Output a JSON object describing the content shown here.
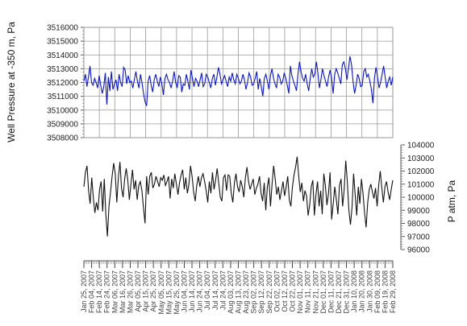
{
  "chart_data": [
    {
      "type": "line",
      "ylabel": "Well Pressure at -350 m, Pa",
      "ylim": [
        3508000,
        3516000
      ],
      "yticks": [
        "3508000",
        "3509000",
        "3510000",
        "3511000",
        "3512000",
        "3513000",
        "3514000",
        "3515000",
        "3516000"
      ],
      "x_range": [
        "2007-01-25",
        "2008-02-29"
      ],
      "grid": true,
      "colors": {
        "series": "#0a14d8"
      },
      "series": [
        {
          "values": [
            3512100,
            3512600,
            3511700,
            3512400,
            3513200,
            3512000,
            3511800,
            3512300,
            3512000,
            3511600,
            3512500,
            3511800,
            3511200,
            3511700,
            3512700,
            3510400,
            3512400,
            3511400,
            3512800,
            3511500,
            3511900,
            3512200,
            3511400,
            3512600,
            3512000,
            3511700,
            3513100,
            3512900,
            3511900,
            3512500,
            3512000,
            3512100,
            3511600,
            3512200,
            3512800,
            3512100,
            3511600,
            3512600,
            3512000,
            3511200,
            3510600,
            3510300,
            3512100,
            3512500,
            3511800,
            3511300,
            3512200,
            3512600,
            3512100,
            3511700,
            3512400,
            3511900,
            3511100,
            3512300,
            3512600,
            3512200,
            3512000,
            3511600,
            3512100,
            3512800,
            3512000,
            3511600,
            3512500,
            3512400,
            3511300,
            3511900,
            3511800,
            3512600,
            3512100,
            3511500,
            3512900,
            3512300,
            3511700,
            3512300,
            3512100,
            3511700,
            3512200,
            3512700,
            3511700,
            3511900,
            3512600,
            3512400,
            3512000,
            3511600,
            3512300,
            3512600,
            3511800,
            3512400,
            3513100,
            3512600,
            3511900,
            3512200,
            3512500,
            3512100,
            3511700,
            3512400,
            3512100,
            3512700,
            3512200,
            3511900,
            3512600,
            3512300,
            3511900,
            3512100,
            3512600,
            3512200,
            3511500,
            3512000,
            3512700,
            3512400,
            3511800,
            3511900,
            3512300,
            3512800,
            3511500,
            3512300,
            3511700,
            3511000,
            3512300,
            3512600,
            3512100,
            3511500,
            3512500,
            3513000,
            3512300,
            3511900,
            3511600,
            3512600,
            3512400,
            3511900,
            3512100,
            3512700,
            3512300,
            3511800,
            3511200,
            3513200,
            3512500,
            3512100,
            3511800,
            3511400,
            3512600,
            3513500,
            3512800,
            3512300,
            3512100,
            3512600,
            3511900,
            3511400,
            3512300,
            3513000,
            3512400,
            3512600,
            3513500,
            3512700,
            3511600,
            3512200,
            3513000,
            3512500,
            3512100,
            3511700,
            3512400,
            3512900,
            3512300,
            3511200,
            3512600,
            3513000,
            3512700,
            3512300,
            3511900,
            3513300,
            3513500,
            3513000,
            3512200,
            3513000,
            3513900,
            3513300,
            3512100,
            3511200,
            3511800,
            3512600,
            3512300,
            3511700,
            3511800,
            3512800,
            3513000,
            3512400,
            3512600,
            3512100,
            3511500,
            3510500,
            3512300,
            3513100,
            3512400,
            3511600,
            3512000,
            3512600,
            3513200,
            3512400,
            3511600,
            3512100,
            3512400,
            3511800,
            3512400
          ]
        }
      ]
    },
    {
      "type": "line",
      "ylabel": "P atm, Pa",
      "ylim": [
        96000,
        104000
      ],
      "yticks": [
        "96000",
        "97000",
        "98000",
        "99000",
        "100000",
        "101000",
        "102000",
        "103000",
        "104000"
      ],
      "x_range": [
        "2007-01-25",
        "2008-02-29"
      ],
      "grid": false,
      "colors": {
        "series": "#111111"
      },
      "series": [
        {
          "values": [
            100800,
            101900,
            102400,
            100500,
            99500,
            101500,
            100000,
            98800,
            99600,
            99000,
            100600,
            101200,
            98900,
            101400,
            98700,
            97000,
            99300,
            100400,
            101600,
            102600,
            101800,
            99600,
            101500,
            102700,
            100700,
            100000,
            101400,
            102200,
            101300,
            99800,
            101000,
            102100,
            100600,
            101300,
            99800,
            100900,
            101200,
            100500,
            99200,
            98000,
            101600,
            100200,
            101600,
            101900,
            100700,
            101000,
            101600,
            101200,
            100800,
            101500,
            101300,
            101700,
            100900,
            101200,
            101600,
            99900,
            101400,
            100700,
            101800,
            101000,
            100200,
            101100,
            101700,
            102100,
            100600,
            101500,
            100300,
            101000,
            102400,
            101600,
            100400,
            99700,
            100900,
            101600,
            100800,
            101500,
            101800,
            101200,
            100500,
            99600,
            101200,
            100300,
            101900,
            100600,
            101300,
            102200,
            101100,
            100000,
            99700,
            101500,
            101700,
            100500,
            101700,
            101600,
            100300,
            99600,
            101100,
            101800,
            100800,
            100400,
            101300,
            100800,
            100000,
            101500,
            102300,
            101200,
            100600,
            101000,
            101400,
            100200,
            100700,
            101000,
            101600,
            100300,
            99700,
            101100,
            99000,
            100800,
            101500,
            99300,
            101000,
            102400,
            101400,
            100200,
            100800,
            99800,
            100500,
            101200,
            100100,
            100800,
            101600,
            99800,
            99300,
            100800,
            101700,
            102300,
            103100,
            101600,
            100400,
            101100,
            99700,
            100500,
            100100,
            98600,
            99400,
            100800,
            101300,
            98600,
            100200,
            101200,
            99300,
            100500,
            98700,
            101800,
            100900,
            99400,
            100300,
            101900,
            98300,
            99500,
            100800,
            99800,
            98700,
            100900,
            101400,
            99300,
            100600,
            102800,
            101200,
            99000,
            97900,
            99200,
            101800,
            100200,
            98600,
            100800,
            99500,
            101400,
            100300,
            98800,
            97700,
            99600,
            100600,
            101000,
            100400,
            99900,
            100700,
            99300,
            100900,
            102000,
            100700,
            99600,
            100800,
            101200,
            100400,
            99800,
            100600,
            101300
          ]
        }
      ]
    }
  ],
  "x_tick_labels": [
    "Jan 25, 2007",
    "Feb 04, 2007",
    "Feb 14, 2007",
    "Feb 24, 2007",
    "Mar 06, 2007",
    "Mar 16, 2007",
    "Mar 26, 2007",
    "Apr 05, 2007",
    "Apr 15, 2007",
    "Apr 25, 2007",
    "May 05, 2007",
    "May 15, 2007",
    "May 25, 2007",
    "Jun 04, 2007",
    "Jun 14, 2007",
    "Jun 24, 2007",
    "Jul 04, 2007",
    "Jul 14, 2007",
    "Jul 24, 2007",
    "Aug 03, 2007",
    "Aug 13, 2007",
    "Aug 23, 2007",
    "Sep 02, 2007",
    "Sep 12, 2007",
    "Sep 22, 2007",
    "Oct 02, 2007",
    "Oct 12, 2007",
    "Oct 22, 2007",
    "Nov 01, 2007",
    "Nov 11, 2007",
    "Nov 21, 2007",
    "Dec 01, 2007",
    "Dec 11, 2007",
    "Dec 21, 2007",
    "Dec 31, 2007",
    "Jan 10, 2008",
    "Jan 20, 2008",
    "Jan 30, 2008",
    "Feb 09, 2008",
    "Feb 19, 2008",
    "Feb 29, 2008"
  ]
}
